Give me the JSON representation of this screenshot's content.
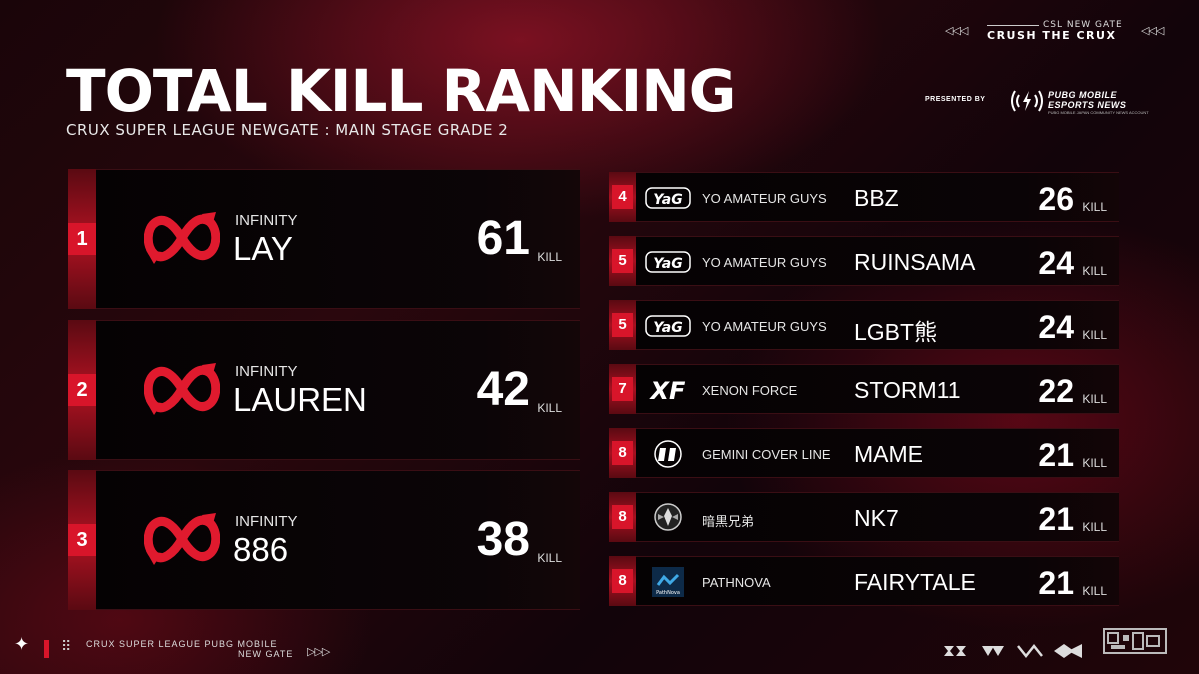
{
  "header": {
    "title": "TOTAL KILL RANKING",
    "subtitle": "CRUX SUPER LEAGUE NEWGATE : MAIN STAGE GRADE 2",
    "tag_small": "CSL NEW GATE",
    "tag_big": "CRUSH THE CRUX",
    "tag_arrows": "◁◁◁",
    "presented_by": "PRESENTED BY",
    "sponsor_line1": "PUBG MOBILE",
    "sponsor_line2": "ESPORTS NEWS",
    "sponsor_line3": "PUBG MOBILE JAPAN COMMUNITY NEWS ACCOUNT"
  },
  "kill_label": "KILL",
  "top3": [
    {
      "rank": "1",
      "team": "INFINITY",
      "player": "LAY",
      "kills": "61",
      "logo": "infinity-logo-icon"
    },
    {
      "rank": "2",
      "team": "INFINITY",
      "player": "LAUREN",
      "kills": "42",
      "logo": "infinity-logo-icon"
    },
    {
      "rank": "3",
      "team": "INFINITY",
      "player": "886",
      "kills": "38",
      "logo": "infinity-logo-icon"
    }
  ],
  "rest": [
    {
      "rank": "4",
      "team": "YO AMATEUR GUYS",
      "player": "BBZ",
      "kills": "26",
      "logo": "yag-logo-icon"
    },
    {
      "rank": "5",
      "team": "YO AMATEUR GUYS",
      "player": "RUINSAMA",
      "kills": "24",
      "logo": "yag-logo-icon"
    },
    {
      "rank": "5",
      "team": "YO AMATEUR GUYS",
      "player": "LGBT熊",
      "kills": "24",
      "logo": "yag-logo-icon"
    },
    {
      "rank": "7",
      "team": "XENON FORCE",
      "player": "STORM11",
      "kills": "22",
      "logo": "xf-logo-icon"
    },
    {
      "rank": "8",
      "team": "GEMINI COVER LINE",
      "player": "MAME",
      "kills": "21",
      "logo": "gemini-logo-icon"
    },
    {
      "rank": "8",
      "team": "暗黒兄弟",
      "player": "NK7",
      "kills": "21",
      "logo": "dark-brothers-logo-icon"
    },
    {
      "rank": "8",
      "team": "PATHNOVA",
      "player": "FAIRYTALE",
      "kills": "21",
      "logo": "pathnova-logo-icon"
    }
  ],
  "logo_text": {
    "yag": "YaG",
    "xf": "XF",
    "pathnova": "PathNova"
  },
  "footer": {
    "line1": "CRUX SUPER LEAGUE PUBG MOBILE",
    "line2": "NEW GATE",
    "arrows": "▷▷▷",
    "star": "✦",
    "dots": "⠿"
  },
  "colors": {
    "accent": "#d8152a",
    "panel": "#050203"
  }
}
